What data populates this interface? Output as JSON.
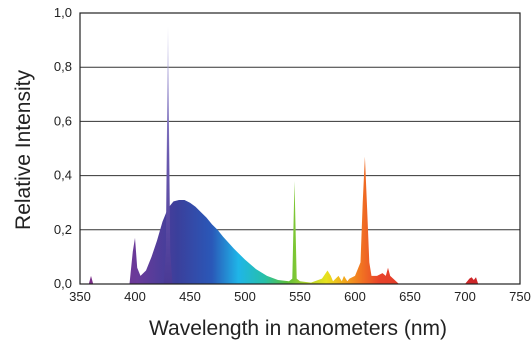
{
  "chart_data": {
    "type": "area",
    "title": "",
    "xlabel": "Wavelength in nanometers (nm)",
    "ylabel": "Relative  Intensity",
    "xlim": [
      350,
      750
    ],
    "ylim": [
      0,
      1.0
    ],
    "x_ticks": [
      "350",
      "400",
      "450",
      "500",
      "550",
      "600",
      "650",
      "700",
      "750"
    ],
    "y_ticks": [
      "0,0",
      "0,2",
      "0,4",
      "0,6",
      "0,8",
      "1,0"
    ],
    "grid": "horizontal",
    "legend": "none",
    "series": [
      {
        "x": [
          350,
          358,
          360,
          362,
          395,
          398,
          400,
          402,
          405,
          410,
          415,
          420,
          425,
          430,
          435,
          440,
          445,
          450,
          455,
          460,
          465,
          470,
          475,
          480,
          490,
          500,
          510,
          520,
          530,
          540,
          543,
          545,
          547,
          550,
          560,
          570,
          575,
          578,
          580,
          585,
          588,
          590,
          593,
          595,
          600,
          605,
          607,
          609,
          611,
          613,
          615,
          620,
          625,
          628,
          630,
          632,
          640,
          700,
          704,
          706,
          708,
          710,
          712,
          750
        ],
        "y": [
          0,
          0,
          0.03,
          0,
          0,
          0.12,
          0.17,
          0.06,
          0.03,
          0.05,
          0.1,
          0.16,
          0.23,
          0.28,
          0.305,
          0.31,
          0.31,
          0.3,
          0.285,
          0.265,
          0.245,
          0.22,
          0.2,
          0.175,
          0.13,
          0.09,
          0.055,
          0.03,
          0.015,
          0.01,
          0.02,
          0.38,
          0.02,
          0.01,
          0.005,
          0.02,
          0.05,
          0.03,
          0.01,
          0.03,
          0.01,
          0.03,
          0.01,
          0.02,
          0.03,
          0.08,
          0.3,
          0.47,
          0.28,
          0.08,
          0.03,
          0.03,
          0.04,
          0.03,
          0.06,
          0.03,
          0,
          0,
          0.02,
          0.025,
          0.015,
          0.025,
          0,
          0
        ]
      },
      {
        "x": [
          426,
          428,
          430,
          432,
          434
        ],
        "y": [
          0,
          0.12,
          0.95,
          0.12,
          0
        ]
      }
    ]
  }
}
